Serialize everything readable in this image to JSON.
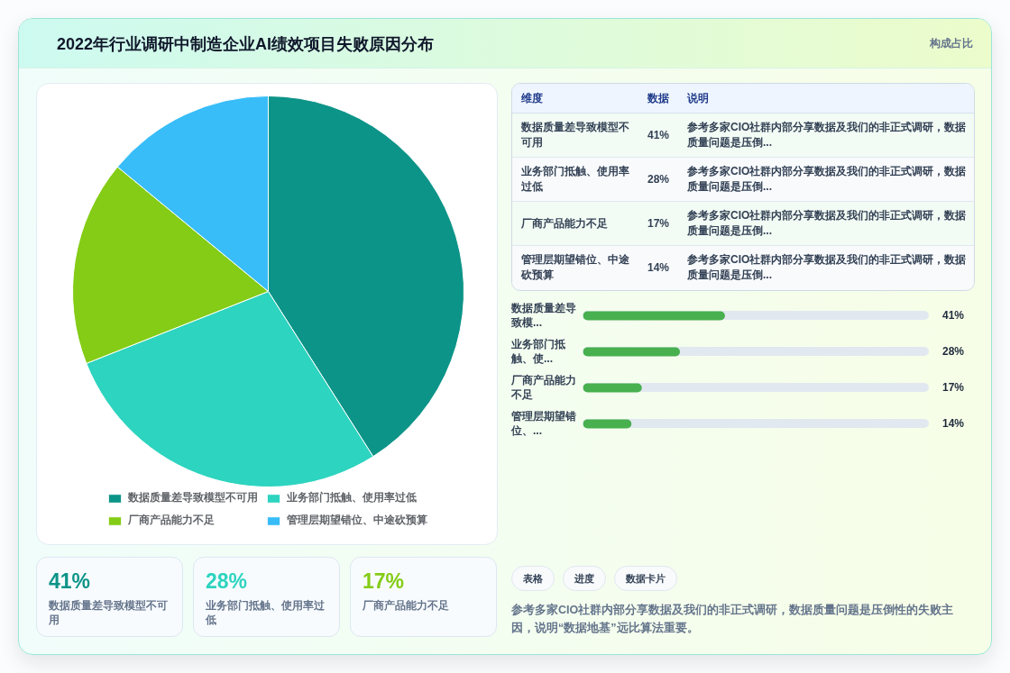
{
  "chart_data": [
    {
      "type": "pie",
      "title": "2022年行业调研中制造企业AI绩效项目失败原因分布",
      "categories": [
        "数据质量差导致模型不可用",
        "业务部门抵触、使用率过低",
        "厂商产品能力不足",
        "管理层期望错位、中途砍预算"
      ],
      "values": [
        41,
        28,
        17,
        14
      ],
      "colors": [
        "#0d9488",
        "#2dd4bf",
        "#84cc16",
        "#38bdf8"
      ],
      "legend": "bottom"
    },
    {
      "type": "other",
      "subtitle": "构成占比",
      "categories": [
        "数据质量差导致模型不可用",
        "业务部门抵触、使用率过低",
        "厂商产品能力不足",
        "管理层期望错位、中途砍预算"
      ],
      "values": [
        41,
        28,
        17,
        14
      ],
      "value_labels": [
        "41%",
        "28%",
        "17%",
        "14%"
      ],
      "annotations": [
        "维度",
        "数据",
        "说明",
        "参考多家CIO社群内部分享数据及我们的非正式调研，数据质量问题是压倒...",
        "参考多家CIO社群内部分享数据及我们的非正式调研，数据质量问题是压倒...",
        "参考多家CIO社群内部分享数据及我们的非正式调研，数据质量问题是压倒...",
        "参考多家CIO社群内部分享数据及我们的非正式调研，数据质量问题是压倒..."
      ]
    },
    {
      "type": "bar",
      "orientation": "horizontal",
      "categories": [
        "数据质量差导致模...",
        "业务部门抵触、使...",
        "厂商产品能力不足",
        "管理层期望错位、..."
      ],
      "values": [
        41,
        28,
        17,
        14
      ],
      "value_labels": [
        "41%",
        "28%",
        "17%",
        "14%"
      ],
      "color": "#48b04f",
      "xlim": [
        0,
        100
      ]
    },
    {
      "type": "other",
      "categories": [
        "数据质量差导致模型不可用",
        "业务部门抵触、使用率过低",
        "厂商产品能力不足"
      ],
      "values": [
        41,
        28,
        17
      ],
      "value_labels": [
        "41%",
        "28%",
        "17%"
      ]
    },
    {
      "type": "other",
      "annotations": [
        "表格",
        "进度",
        "数据卡片",
        "参考多家CIO社群内部分享数据及我们的非正式调研，数据质量问题是压倒性的失败主因，说明“数据地基”远比算法重要。"
      ]
    }
  ]
}
